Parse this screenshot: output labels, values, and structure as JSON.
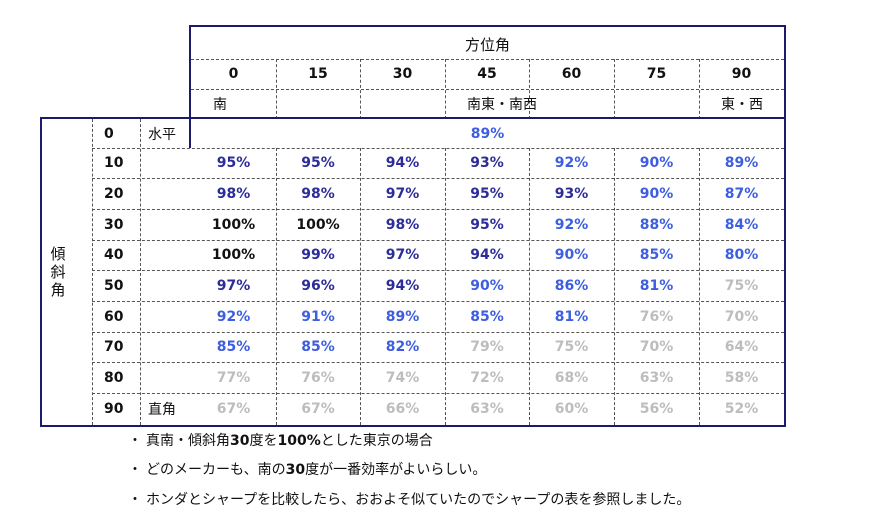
{
  "azimuth_header": "方位角",
  "azimuth_values": [
    "0",
    "15",
    "30",
    "45",
    "60",
    "75",
    "90"
  ],
  "direction_labels": [
    "南",
    "",
    "",
    "南東・南西",
    "",
    "",
    "東・西"
  ],
  "tilt_header_chars": [
    "傾",
    "斜",
    "角"
  ],
  "tilt_values": [
    "0",
    "10",
    "20",
    "30",
    "40",
    "50",
    "60",
    "70",
    "80",
    "90"
  ],
  "tilt_notes": [
    "水平",
    "",
    "",
    "",
    "",
    "",
    "",
    "",
    "",
    "直角"
  ],
  "horizontal_value": "89%",
  "rows": [
    [
      "95%",
      "95%",
      "94%",
      "93%",
      "92%",
      "90%",
      "89%"
    ],
    [
      "98%",
      "98%",
      "97%",
      "95%",
      "93%",
      "90%",
      "87%"
    ],
    [
      "100%",
      "100%",
      "98%",
      "95%",
      "92%",
      "88%",
      "84%"
    ],
    [
      "100%",
      "99%",
      "97%",
      "94%",
      "90%",
      "85%",
      "80%"
    ],
    [
      "97%",
      "96%",
      "94%",
      "90%",
      "86%",
      "81%",
      "75%"
    ],
    [
      "92%",
      "91%",
      "89%",
      "85%",
      "81%",
      "76%",
      "70%"
    ],
    [
      "85%",
      "85%",
      "82%",
      "79%",
      "75%",
      "70%",
      "64%"
    ],
    [
      "77%",
      "76%",
      "74%",
      "72%",
      "68%",
      "63%",
      "58%"
    ],
    [
      "67%",
      "67%",
      "66%",
      "63%",
      "60%",
      "56%",
      "52%"
    ]
  ],
  "colors": {
    "black": "#111111",
    "navy": "#2c2c9a",
    "blue": "#3d5ee0",
    "gray": "#bdbdbd",
    "border": "#1a1a6e"
  },
  "notes": [
    {
      "bullet": "・",
      "parts": [
        {
          "t": "真南・傾斜角",
          "b": false
        },
        {
          "t": "30",
          "b": true
        },
        {
          "t": "度を",
          "b": false
        },
        {
          "t": "100%",
          "b": true
        },
        {
          "t": "とした東京の場合",
          "b": false
        }
      ]
    },
    {
      "bullet": "・",
      "parts": [
        {
          "t": "どのメーカーも、南の",
          "b": false
        },
        {
          "t": "30",
          "b": true
        },
        {
          "t": "度が一番効率がよいらしい。",
          "b": false
        }
      ]
    },
    {
      "bullet": "・",
      "parts": [
        {
          "t": "ホンダとシャープを比較したら、おおよそ似ていたのでシャープの表を参照しました。",
          "b": false
        }
      ]
    }
  ]
}
